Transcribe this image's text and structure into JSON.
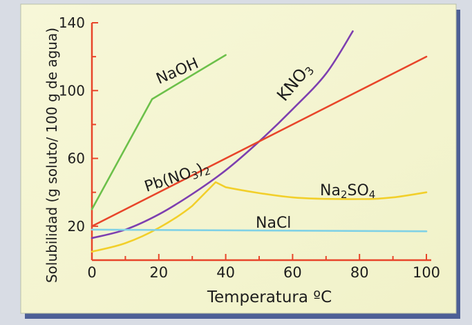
{
  "chart_data": {
    "type": "line",
    "title": "",
    "xlabel": "Temperatura ºC",
    "ylabel": "Solubilidad (g soluto/ 100 g de agua)",
    "xlim": [
      0,
      100
    ],
    "ylim": [
      0,
      140
    ],
    "x_ticks": [
      0,
      20,
      40,
      60,
      80,
      100
    ],
    "y_ticks": [
      20,
      60,
      100,
      140
    ],
    "x_tick_labels": [
      "0",
      "20",
      "40",
      "60",
      "80",
      "100"
    ],
    "y_tick_labels": [
      "20",
      "60",
      "100",
      "140"
    ],
    "grid": false,
    "legend": "none",
    "series": [
      {
        "name": "NaOH",
        "label_parts": [
          {
            "t": "NaOH",
            "sub": false
          }
        ],
        "color": "#6cc04a",
        "points": [
          [
            0,
            30
          ],
          [
            18,
            95
          ],
          [
            40,
            121
          ]
        ]
      },
      {
        "name": "KNO3",
        "label_parts": [
          {
            "t": "KNO",
            "sub": false
          },
          {
            "t": "3",
            "sub": true
          }
        ],
        "color": "#7d3fb0",
        "points": [
          [
            0,
            13
          ],
          [
            10,
            18
          ],
          [
            20,
            27
          ],
          [
            30,
            39
          ],
          [
            40,
            53
          ],
          [
            50,
            70
          ],
          [
            60,
            89
          ],
          [
            70,
            110
          ],
          [
            78,
            135
          ]
        ]
      },
      {
        "name": "Pb(NO3)2",
        "label_parts": [
          {
            "t": "Pb(NO",
            "sub": false
          },
          {
            "t": "3",
            "sub": true
          },
          {
            "t": ")",
            "sub": false
          },
          {
            "t": "2",
            "sub": true
          }
        ],
        "color": "#e8452a",
        "points": [
          [
            0,
            20
          ],
          [
            100,
            120
          ]
        ]
      },
      {
        "name": "Na2SO4",
        "label_parts": [
          {
            "t": "Na",
            "sub": false
          },
          {
            "t": "2",
            "sub": true
          },
          {
            "t": "SO",
            "sub": false
          },
          {
            "t": "4",
            "sub": true
          }
        ],
        "color": "#f2cf2a",
        "points": [
          [
            0,
            5
          ],
          [
            10,
            10
          ],
          [
            20,
            19
          ],
          [
            30,
            32
          ],
          [
            37,
            46
          ],
          [
            40,
            43
          ],
          [
            60,
            37
          ],
          [
            80,
            36
          ],
          [
            90,
            37
          ],
          [
            100,
            40
          ]
        ]
      },
      {
        "name": "NaCl",
        "label_parts": [
          {
            "t": "NaCl",
            "sub": false
          }
        ],
        "color": "#7fd1e6",
        "points": [
          [
            0,
            18
          ],
          [
            100,
            17
          ]
        ]
      }
    ]
  }
}
